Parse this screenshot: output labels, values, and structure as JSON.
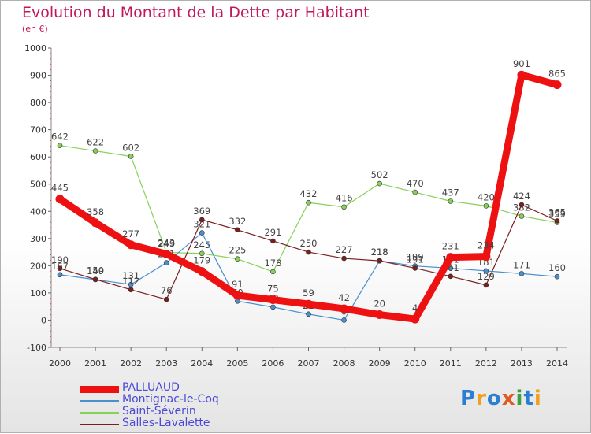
{
  "title": "Evolution du Montant de la Dette par Habitant",
  "subtitle": "(en €)",
  "logo": {
    "text": "Proxiti",
    "letters": [
      {
        "ch": "P",
        "color": "#2b7fd0"
      },
      {
        "ch": "r",
        "color": "#f0a020"
      },
      {
        "ch": "o",
        "color": "#2b7fd0"
      },
      {
        "ch": "x",
        "color": "#e05a20"
      },
      {
        "ch": "i",
        "color": "#3aa040"
      },
      {
        "ch": "t",
        "color": "#2b7fd0"
      },
      {
        "ch": "i",
        "color": "#f0a020"
      }
    ]
  },
  "chart_data": {
    "type": "line",
    "x": [
      "2000",
      "2001",
      "2002",
      "2003",
      "2004",
      "2005",
      "2006",
      "2007",
      "2008",
      "2009",
      "2010",
      "2011",
      "2012",
      "2013",
      "2014"
    ],
    "ylim": [
      -100,
      1000
    ],
    "yticks": [
      "-100",
      "0",
      "100",
      "200",
      "300",
      "400",
      "500",
      "600",
      "700",
      "800",
      "900",
      "1000"
    ],
    "grid": false,
    "legend_position": "bottom-left",
    "series": [
      {
        "name": "Saint-Séverin",
        "color": "#88d158",
        "values": [
          642,
          622,
          602,
          249,
          245,
          225,
          178,
          432,
          416,
          502,
          470,
          437,
          420,
          382,
          359
        ],
        "labels": [
          "642",
          "622",
          "602",
          "249",
          "245",
          "225",
          "178",
          "432",
          "416",
          "502",
          "470",
          "437",
          "420",
          "382",
          "359"
        ]
      },
      {
        "name": "Montignac-le-Coq",
        "color": "#4a8fd0",
        "values": [
          167,
          149,
          131,
          211,
          321,
          70,
          48,
          22,
          0,
          218,
          199,
          191,
          181,
          171,
          160
        ],
        "labels": [
          "167",
          "149",
          "131",
          "211",
          "321",
          "70",
          "48",
          "22",
          "0",
          "218",
          "199",
          "191",
          "181",
          "171",
          "160"
        ]
      },
      {
        "name": "Salles-Lavalette",
        "color": "#7a1f1f",
        "values": [
          190,
          150,
          112,
          76,
          369,
          332,
          291,
          250,
          227,
          218,
          191,
          161,
          129,
          424,
          365
        ],
        "labels": [
          "190",
          "150",
          "112",
          "76",
          "369",
          "332",
          "291",
          "250",
          "227",
          "218",
          "191",
          "161",
          "129",
          "424",
          "365"
        ]
      },
      {
        "name": "PALLUAUD",
        "color": "#ee1111",
        "values": [
          445,
          358,
          277,
          243,
          179,
          91,
          75,
          59,
          42,
          20,
          4,
          231,
          234,
          901,
          865
        ],
        "labels": [
          "445",
          "358",
          "277",
          "243",
          "179",
          "91",
          "75",
          "59",
          "42",
          "20",
          "4",
          "231",
          "234",
          "901",
          "865"
        ]
      }
    ]
  },
  "legend": [
    {
      "name": "PALLUAUD",
      "color": "#ee1111",
      "thickness": 9
    },
    {
      "name": "Montignac-le-Coq",
      "color": "#4a8fd0",
      "thickness": 2
    },
    {
      "name": "Saint-Séverin",
      "color": "#88d158",
      "thickness": 2
    },
    {
      "name": "Salles-Lavalette",
      "color": "#7a1f1f",
      "thickness": 2
    }
  ]
}
